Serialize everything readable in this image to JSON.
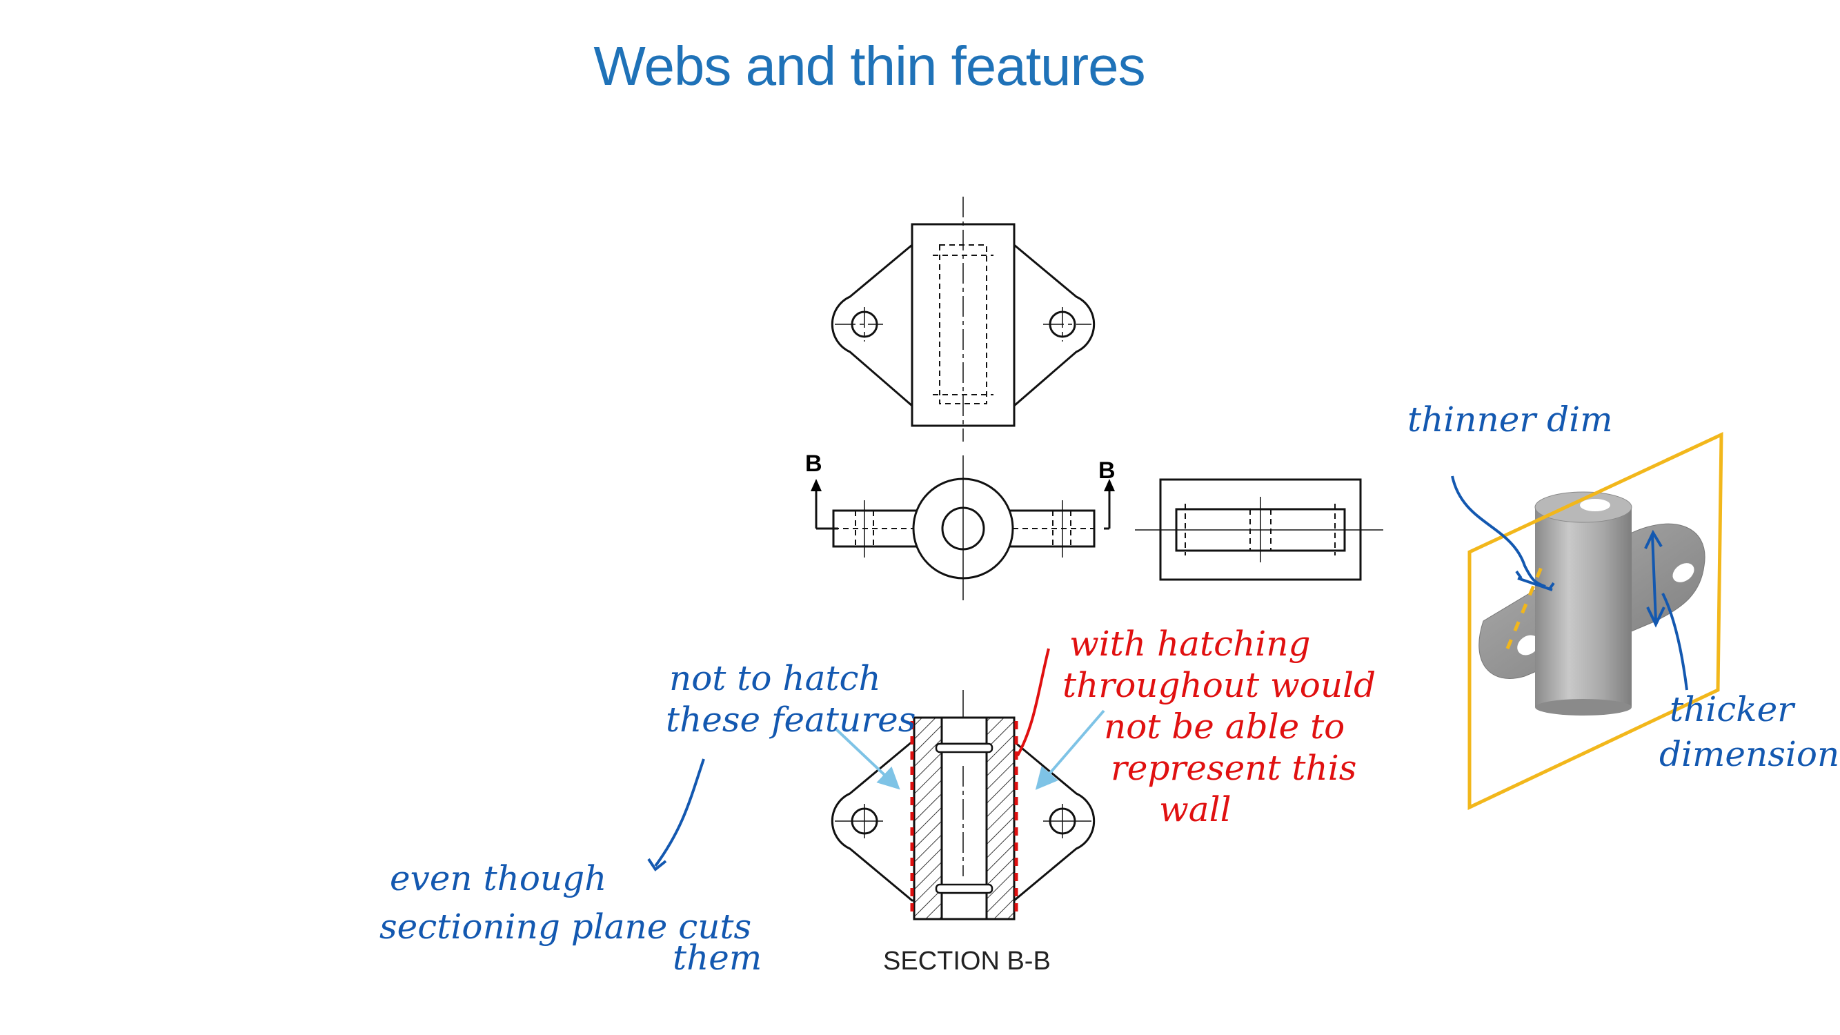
{
  "slide": {
    "title": "Webs and thin features"
  },
  "drawing": {
    "section_markers": [
      "B",
      "B"
    ],
    "section_label": "SECTION B-B"
  },
  "annotations": {
    "blue_note_top": [
      "not to hatch",
      "these features"
    ],
    "blue_note_bottom": [
      "even though",
      "sectioning plane cuts",
      "them"
    ],
    "red_note": [
      "with hatching",
      "throughout would",
      "not be able to",
      "represent this",
      "wall"
    ],
    "iso_top": "thinner dim",
    "iso_bottom": [
      "thicker",
      "dimension"
    ]
  },
  "colors": {
    "title": "#1f72b8",
    "ink_blue": "#1358b0",
    "ink_red": "#e01010",
    "arrow_light_blue": "#7ec3e6",
    "plane_yellow": "#f2b71b",
    "part_gray": "#9a9a9a"
  }
}
